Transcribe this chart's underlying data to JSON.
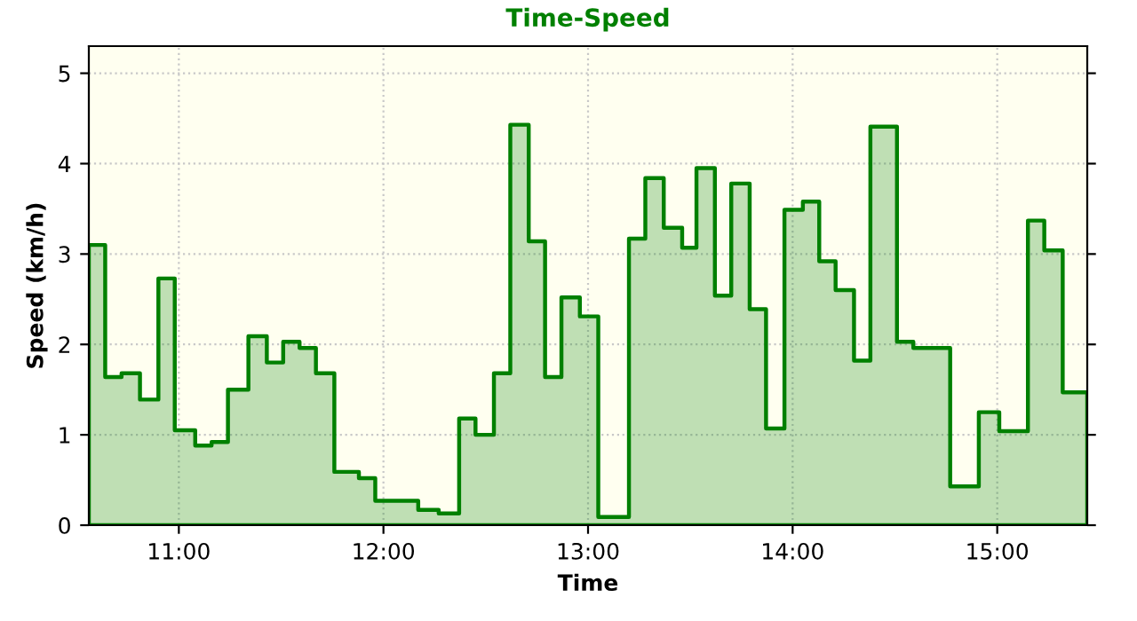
{
  "chart_data": {
    "type": "area",
    "title": "Time-Speed",
    "xlabel": "Time",
    "ylabel": "Speed (km/h)",
    "x": [
      10.56,
      10.64,
      10.64,
      10.72,
      10.72,
      10.81,
      10.81,
      10.9,
      10.9,
      10.98,
      10.98,
      11.08,
      11.08,
      11.16,
      11.16,
      11.24,
      11.24,
      11.34,
      11.34,
      11.43,
      11.43,
      11.51,
      11.51,
      11.59,
      11.59,
      11.67,
      11.67,
      11.76,
      11.76,
      11.88,
      11.88,
      11.96,
      11.96,
      12.17,
      12.17,
      12.27,
      12.27,
      12.37,
      12.37,
      12.45,
      12.45,
      12.54,
      12.54,
      12.62,
      12.62,
      12.71,
      12.71,
      12.79,
      12.79,
      12.87,
      12.87,
      12.96,
      12.96,
      13.05,
      13.05,
      13.2,
      13.2,
      13.28,
      13.28,
      13.37,
      13.37,
      13.46,
      13.46,
      13.53,
      13.53,
      13.62,
      13.62,
      13.7,
      13.7,
      13.79,
      13.79,
      13.87,
      13.87,
      13.96,
      13.96,
      14.05,
      14.05,
      14.13,
      14.13,
      14.21,
      14.21,
      14.3,
      14.3,
      14.38,
      14.38,
      14.51,
      14.51,
      14.59,
      14.59,
      14.77,
      14.77,
      14.91,
      14.91,
      15.01,
      15.01,
      15.15,
      15.15,
      15.23,
      15.23,
      15.32,
      15.32,
      15.44
    ],
    "series": [
      {
        "color": "#008000",
        "values": [
          3.1,
          3.1,
          1.64,
          1.64,
          1.68,
          1.68,
          1.39,
          1.39,
          2.73,
          2.73,
          1.05,
          1.05,
          0.88,
          0.88,
          0.92,
          0.92,
          1.5,
          1.5,
          2.09,
          2.09,
          1.8,
          1.8,
          2.03,
          2.03,
          1.96,
          1.96,
          1.68,
          1.68,
          0.59,
          0.59,
          0.52,
          0.52,
          0.27,
          0.27,
          0.17,
          0.17,
          0.13,
          0.13,
          1.18,
          1.18,
          1.0,
          1.0,
          1.68,
          1.68,
          4.43,
          4.43,
          3.14,
          3.14,
          1.64,
          1.64,
          2.52,
          2.52,
          2.31,
          2.31,
          0.09,
          0.09,
          3.17,
          3.17,
          3.84,
          3.84,
          3.29,
          3.29,
          3.07,
          3.07,
          3.95,
          3.95,
          2.54,
          2.54,
          3.78,
          3.78,
          2.39,
          2.39,
          1.07,
          1.07,
          3.49,
          3.49,
          3.58,
          3.58,
          2.92,
          2.92,
          2.6,
          2.6,
          1.82,
          1.82,
          4.41,
          4.41,
          2.03,
          2.03,
          1.96,
          1.96,
          0.43,
          0.43,
          1.25,
          1.25,
          1.04,
          1.04,
          3.37,
          3.37,
          3.04,
          3.04,
          1.47,
          1.47
        ]
      }
    ],
    "xlim": [
      10.56,
      15.44
    ],
    "ylim": [
      0,
      5.3
    ],
    "xticks": [
      {
        "value": 11,
        "label": "11:00"
      },
      {
        "value": 12,
        "label": "12:00"
      },
      {
        "value": 13,
        "label": "13:00"
      },
      {
        "value": 14,
        "label": "14:00"
      },
      {
        "value": 15,
        "label": "15:00"
      }
    ],
    "yticks": [
      0,
      1,
      2,
      3,
      4,
      5
    ],
    "grid": true,
    "line_style": "solid"
  }
}
